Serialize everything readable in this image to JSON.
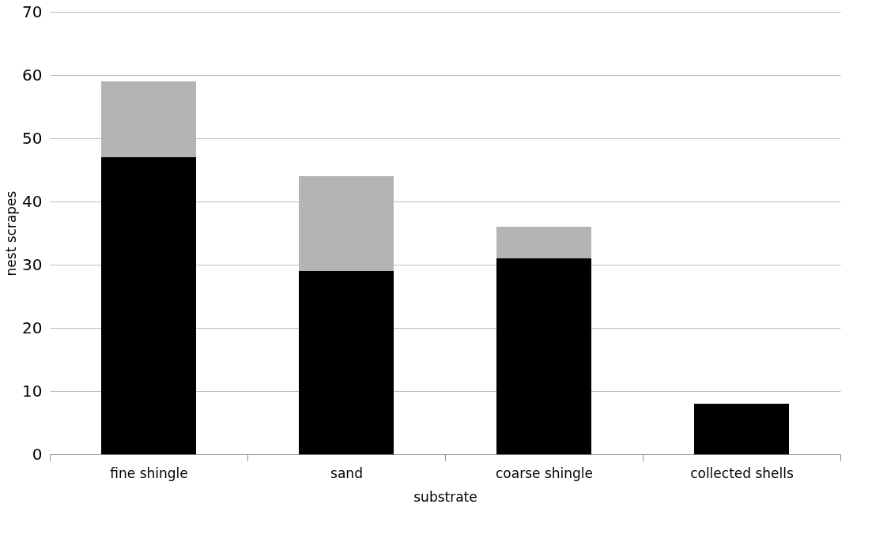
{
  "chart_data": {
    "type": "bar",
    "stacked": true,
    "xlabel": "substrate",
    "ylabel": "nest scrapes",
    "categories": [
      "fine shingle",
      "sand",
      "coarse shingle",
      "collected shells"
    ],
    "series": [
      {
        "color": "#000000",
        "values": [
          47,
          29,
          31,
          8
        ]
      },
      {
        "color": "#b4b4b4",
        "values": [
          12,
          15,
          5,
          0
        ]
      }
    ],
    "ylim": [
      0,
      70
    ],
    "yticks": [
      0,
      10,
      20,
      30,
      40,
      50,
      60,
      70
    ],
    "grid": "y"
  }
}
